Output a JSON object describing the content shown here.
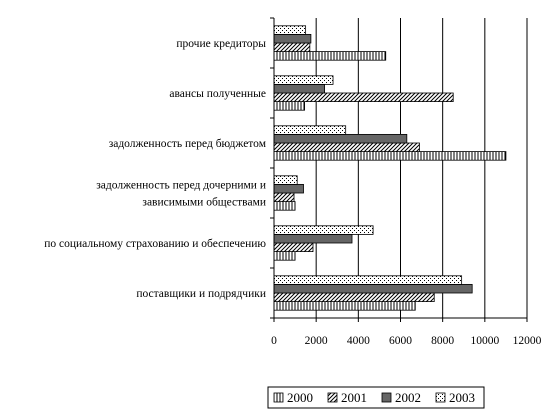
{
  "chart_data": {
    "type": "bar",
    "orientation": "horizontal",
    "title": "",
    "xlabel": "",
    "ylabel": "",
    "xlim": [
      0,
      12000
    ],
    "x_ticks": [
      "0",
      "2000",
      "4000",
      "6000",
      "8000",
      "10000",
      "12000"
    ],
    "grid": true,
    "legend_position": "bottom",
    "categories": [
      {
        "lines": [
          "прочие кредиторы"
        ]
      },
      {
        "lines": [
          "авансы полученные"
        ]
      },
      {
        "lines": [
          "задолженность перед бюджетом"
        ]
      },
      {
        "lines": [
          "задолженность перед дочерними и",
          "зависимыми обществами"
        ]
      },
      {
        "lines": [
          "по социальному страхованию и обеспечению"
        ]
      },
      {
        "lines": [
          "поставщики и подрядчики"
        ]
      }
    ],
    "series": [
      {
        "name": "2000",
        "pattern": "vertical-lines",
        "values": [
          5300,
          1450,
          11000,
          1000,
          1000,
          6700
        ]
      },
      {
        "name": "2001",
        "pattern": "diagonal-lines",
        "values": [
          1700,
          8500,
          6900,
          950,
          1850,
          7600
        ]
      },
      {
        "name": "2002",
        "pattern": "solid-gray",
        "values": [
          1750,
          2400,
          6300,
          1400,
          3700,
          9400
        ]
      },
      {
        "name": "2003",
        "pattern": "dots",
        "values": [
          1500,
          2800,
          3400,
          1100,
          4700,
          8900
        ]
      }
    ],
    "colors": {
      "solid_gray": "#666666",
      "grid": "#000000",
      "background": "#ffffff"
    }
  }
}
